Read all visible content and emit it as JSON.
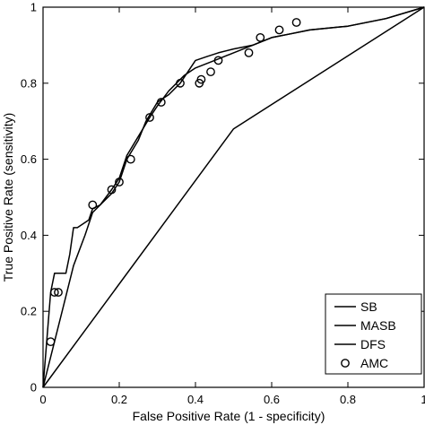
{
  "chart_data": {
    "type": "line",
    "title": "",
    "xlabel": "False Positive Rate (1 - specificity)",
    "ylabel": "True Positive Rate (sensitivity)",
    "xlim": [
      0,
      1
    ],
    "ylim": [
      0,
      1
    ],
    "x_ticks": [
      "0",
      "0.2",
      "0.4",
      "0.6",
      "0.8",
      "1"
    ],
    "y_ticks": [
      "0",
      "0.2",
      "0.4",
      "0.6",
      "0.8",
      "1"
    ],
    "grid": false,
    "legend_position": "bottom-right",
    "diagonal_reference": true,
    "series": [
      {
        "name": "SB",
        "style": "line",
        "color": "#000000",
        "x": [
          0,
          0.5,
          1
        ],
        "y": [
          0,
          0.68,
          1
        ]
      },
      {
        "name": "MASB",
        "style": "line",
        "color": "#000000",
        "x": [
          0,
          0.02,
          0.03,
          0.06,
          0.07,
          0.08,
          0.09,
          0.12,
          0.13,
          0.15,
          0.18,
          0.2,
          0.22,
          0.25,
          0.27,
          0.3,
          0.33,
          0.36,
          0.4,
          0.43,
          0.46,
          0.5,
          0.55,
          0.6,
          0.65,
          0.7,
          0.8,
          0.9,
          1
        ],
        "y": [
          0,
          0.25,
          0.3,
          0.3,
          0.35,
          0.42,
          0.42,
          0.44,
          0.47,
          0.48,
          0.51,
          0.54,
          0.6,
          0.65,
          0.7,
          0.75,
          0.77,
          0.8,
          0.86,
          0.87,
          0.88,
          0.89,
          0.9,
          0.92,
          0.93,
          0.94,
          0.95,
          0.97,
          1
        ]
      },
      {
        "name": "DFS",
        "style": "line",
        "color": "#000000",
        "x": [
          0,
          0.05,
          0.08,
          0.11,
          0.13,
          0.15,
          0.18,
          0.2,
          0.22,
          0.25,
          0.28,
          0.3,
          0.33,
          0.37,
          0.4,
          0.45,
          0.5,
          0.55,
          0.6,
          0.65,
          0.7,
          0.8,
          0.9,
          1
        ],
        "y": [
          0,
          0.2,
          0.32,
          0.4,
          0.46,
          0.48,
          0.52,
          0.55,
          0.61,
          0.66,
          0.71,
          0.74,
          0.78,
          0.82,
          0.84,
          0.86,
          0.88,
          0.9,
          0.92,
          0.93,
          0.94,
          0.95,
          0.97,
          1
        ]
      },
      {
        "name": "AMC",
        "style": "marker-circle",
        "color": "#000000",
        "x": [
          0.02,
          0.03,
          0.04,
          0.13,
          0.18,
          0.2,
          0.23,
          0.28,
          0.31,
          0.36,
          0.41,
          0.415,
          0.44,
          0.46,
          0.54,
          0.57,
          0.62,
          0.665
        ],
        "y": [
          0.12,
          0.25,
          0.25,
          0.48,
          0.52,
          0.54,
          0.6,
          0.71,
          0.75,
          0.8,
          0.8,
          0.81,
          0.83,
          0.86,
          0.88,
          0.92,
          0.94,
          0.96
        ]
      }
    ]
  }
}
